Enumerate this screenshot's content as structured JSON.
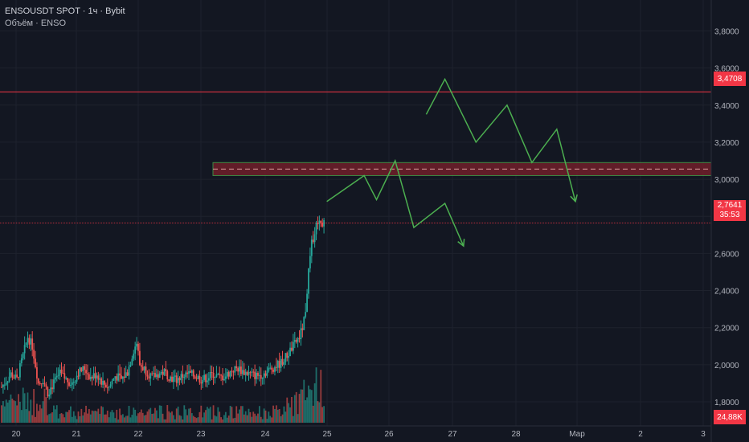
{
  "legend": {
    "symbol_line": "ENSOUSDT SPOT · 1ч · Bybit",
    "volume_line": "Объём · ENSO"
  },
  "colors": {
    "background": "#131722",
    "up": "#26a69a",
    "down": "#ef5350",
    "level_line": "#f23645",
    "drawing": "#4caf50",
    "grid": "#1e222d",
    "axis_text": "#b2b5be"
  },
  "price_axis": {
    "ticks": [
      "3,8000",
      "3,6000",
      "3,4000",
      "3,2000",
      "3,0000",
      "2,8000",
      "2,6000",
      "2,4000",
      "2,2000",
      "2,0000",
      "1,8000"
    ],
    "range": [
      1.67,
      3.88
    ]
  },
  "time_axis": {
    "ticks": [
      "20",
      "21",
      "22",
      "23",
      "24",
      "25",
      "26",
      "27",
      "28",
      "Мар",
      "2",
      "3"
    ]
  },
  "labels": {
    "resistance_price": "3,4708",
    "current_price": "2,7641",
    "countdown": "35:53",
    "volume_value": "24,88K"
  },
  "chart_data": {
    "type": "candlestick",
    "symbol": "ENSOUSDT SPOT",
    "timeframe": "1ч",
    "exchange": "Bybit",
    "x_start": "20",
    "horizontal_lines": [
      3.4708,
      2.7641
    ],
    "zone": {
      "from": 3.02,
      "to": 3.09,
      "mid": 3.055
    },
    "ohlc_waypoints": [
      [
        0,
        1.88
      ],
      [
        6,
        1.95
      ],
      [
        10,
        1.92
      ],
      [
        14,
        2.05
      ],
      [
        17,
        2.15
      ],
      [
        20,
        2.1
      ],
      [
        24,
        1.9
      ],
      [
        27,
        1.92
      ],
      [
        30,
        1.85
      ],
      [
        34,
        1.9
      ],
      [
        38,
        1.95
      ],
      [
        42,
        1.92
      ],
      [
        46,
        1.9
      ],
      [
        50,
        1.96
      ],
      [
        54,
        1.98
      ],
      [
        58,
        1.93
      ],
      [
        62,
        1.95
      ],
      [
        66,
        1.9
      ],
      [
        70,
        1.88
      ],
      [
        74,
        1.94
      ],
      [
        78,
        1.92
      ],
      [
        82,
        1.96
      ],
      [
        86,
        2.08
      ],
      [
        88,
        2.12
      ],
      [
        90,
        2.0
      ],
      [
        94,
        1.97
      ],
      [
        98,
        1.93
      ],
      [
        102,
        1.95
      ],
      [
        106,
        1.96
      ],
      [
        110,
        1.93
      ],
      [
        114,
        1.92
      ],
      [
        118,
        1.94
      ],
      [
        122,
        1.95
      ],
      [
        126,
        1.94
      ],
      [
        130,
        1.92
      ],
      [
        134,
        1.93
      ],
      [
        138,
        1.95
      ],
      [
        142,
        1.93
      ],
      [
        146,
        1.94
      ],
      [
        150,
        1.97
      ],
      [
        154,
        1.98
      ],
      [
        158,
        1.96
      ],
      [
        162,
        1.95
      ],
      [
        166,
        1.94
      ],
      [
        170,
        1.95
      ],
      [
        174,
        1.97
      ],
      [
        178,
        1.99
      ],
      [
        182,
        2.01
      ],
      [
        186,
        2.05
      ],
      [
        190,
        2.1
      ],
      [
        194,
        2.15
      ],
      [
        196,
        2.2
      ],
      [
        198,
        2.3
      ],
      [
        200,
        2.5
      ],
      [
        202,
        2.65
      ],
      [
        204,
        2.72
      ],
      [
        206,
        2.78
      ],
      [
        208,
        2.77
      ],
      [
        210,
        2.7641
      ]
    ],
    "projection_paths": [
      [
        [
          "25",
          "2,88"
        ],
        [
          "25.6",
          "3,02"
        ],
        [
          "25.8",
          "2,89"
        ],
        [
          "26.1",
          "3,10"
        ],
        [
          "26.4",
          "2,74"
        ],
        [
          "26.9",
          "2,87"
        ],
        [
          "27.2",
          "2,64"
        ]
      ],
      [
        [
          "26.6",
          "3,35"
        ],
        [
          "26.9",
          "3,54"
        ],
        [
          "27.4",
          "3,20"
        ],
        [
          "27.9",
          "3,40"
        ],
        [
          "28.3",
          "3,09"
        ],
        [
          "28.7",
          "3,27"
        ],
        [
          "29.0",
          "2,88"
        ]
      ]
    ]
  }
}
